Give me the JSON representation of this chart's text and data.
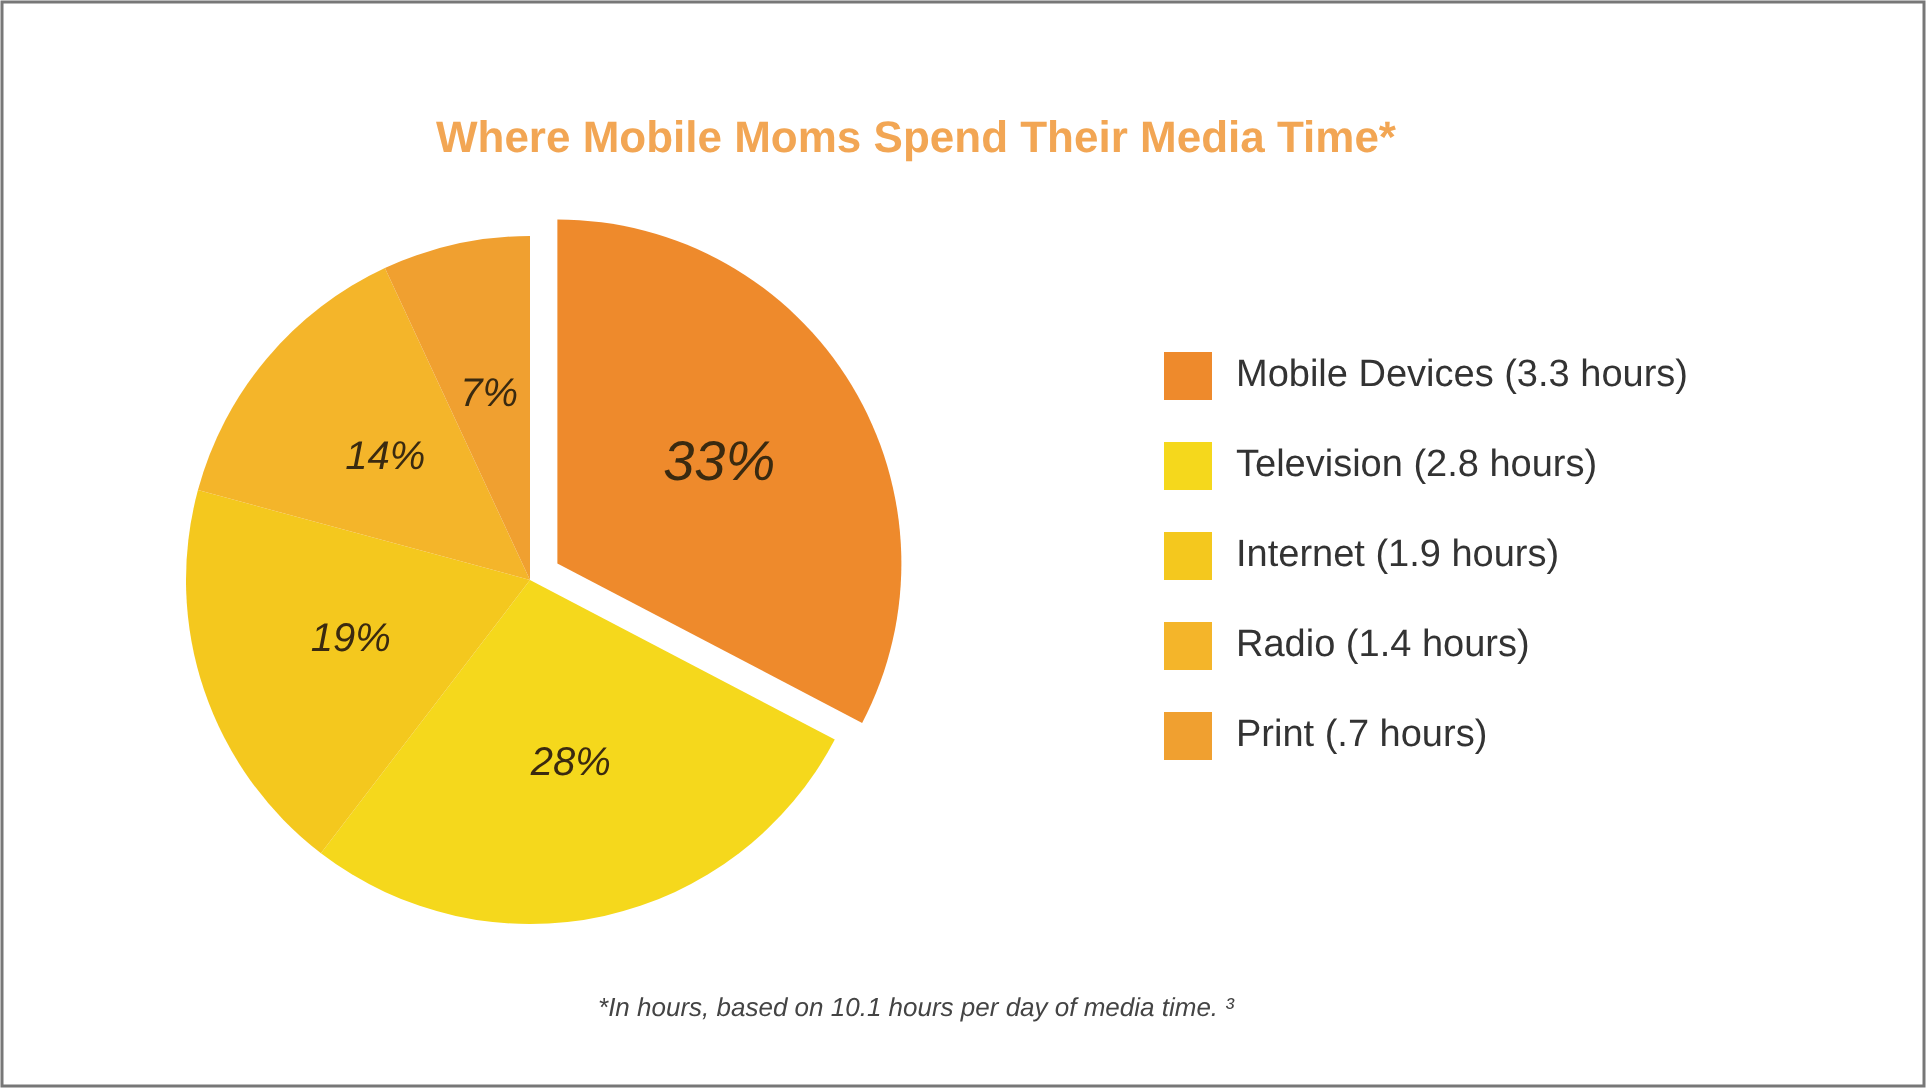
{
  "chart_data": {
    "type": "pie",
    "title": "Where Mobile Moms Spend Their Media Time*",
    "categories": [
      "Mobile Devices (3.3 hours)",
      "Television (2.8 hours)",
      "Internet (1.9 hours)",
      "Radio (1.4 hours)",
      "Print (.7 hours)"
    ],
    "values": [
      33,
      28,
      19,
      14,
      7
    ],
    "colors": [
      "#ee8a2c",
      "#f5d81c",
      "#f4c81e",
      "#f4b52a",
      "#f0a030"
    ],
    "value_labels": [
      "33%",
      "28%",
      "19%",
      "14%",
      "7%"
    ],
    "legend": "right",
    "annotations": [
      "*In hours, based on 10.1 hours per day of media time. ³"
    ]
  }
}
